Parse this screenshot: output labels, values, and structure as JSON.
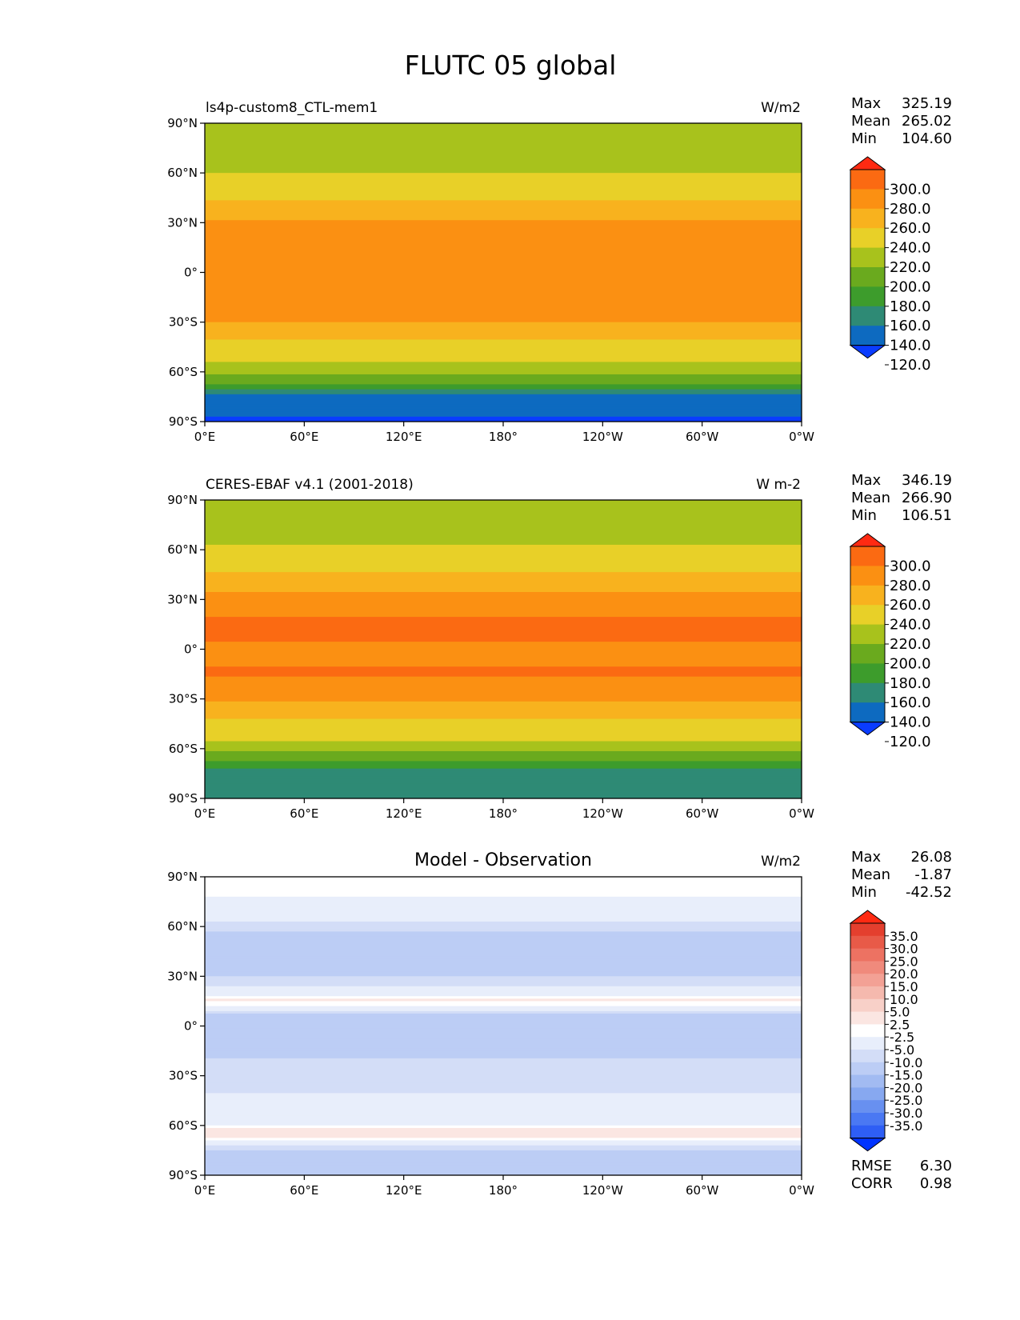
{
  "title": "FLUTC 05 global",
  "lat_ticks": [
    "90°N",
    "60°N",
    "30°N",
    "0°",
    "30°S",
    "60°S",
    "90°S"
  ],
  "lon_ticks": [
    "0°E",
    "60°E",
    "120°E",
    "180°",
    "120°W",
    "60°W",
    "0°W"
  ],
  "colors": {
    "abs": [
      "#0a3cff",
      "#0d6ac0",
      "#2e8a75",
      "#3d9c2c",
      "#6aaa1e",
      "#a8c21c",
      "#e8d028",
      "#f8b21e",
      "#fb9012",
      "#fb6a12",
      "#ff2a12"
    ],
    "diff": [
      "#0033ff",
      "#2e5ef5",
      "#4a78f3",
      "#6890f0",
      "#87a8f0",
      "#a2bbf2",
      "#bccdf5",
      "#d3ddf7",
      "#e8eefb",
      "#ffffff",
      "#fbe6e2",
      "#f8d0c8",
      "#f5b9ae",
      "#f3a195",
      "#f08a7c",
      "#ed7262",
      "#e85a48",
      "#e43f2e",
      "#ff2a12"
    ]
  },
  "chart_data": [
    {
      "type": "heatmap",
      "label_left": "ls4p-custom8_CTL-mem1",
      "label_right": "W/m2",
      "stats": {
        "max_label": "Max",
        "max": "325.19",
        "mean_label": "Mean",
        "mean": "265.02",
        "min_label": "Min",
        "min": "104.60"
      },
      "levels": [
        "300.0",
        "280.0",
        "260.0",
        "240.0",
        "220.0",
        "200.0",
        "180.0",
        "160.0",
        "140.0",
        "120.0"
      ],
      "zonal_profile": {
        "lat": [
          -90,
          -75,
          -65,
          -55,
          -45,
          -35,
          -25,
          -15,
          -5,
          5,
          15,
          25,
          35,
          45,
          55,
          65,
          75,
          90
        ],
        "value": [
          115,
          135,
          190,
          218,
          233,
          250,
          268,
          275,
          268,
          268,
          275,
          268,
          255,
          238,
          225,
          215,
          210,
          205
        ]
      }
    },
    {
      "type": "heatmap",
      "label_left": "CERES-EBAF v4.1 (2001-2018)",
      "label_right": "W m-2",
      "stats": {
        "max_label": "Max",
        "max": "346.19",
        "mean_label": "Mean",
        "mean": "266.90",
        "min_label": "Min",
        "min": "106.51"
      },
      "levels": [
        "300.0",
        "280.0",
        "260.0",
        "240.0",
        "220.0",
        "200.0",
        "180.0",
        "160.0",
        "140.0",
        "120.0"
      ],
      "zonal_profile": {
        "lat": [
          -90,
          -75,
          -65,
          -55,
          -45,
          -35,
          -25,
          -15,
          -5,
          5,
          15,
          25,
          35,
          45,
          55,
          65,
          75,
          90
        ],
        "value": [
          140,
          150,
          190,
          220,
          235,
          252,
          272,
          282,
          278,
          280,
          285,
          272,
          260,
          242,
          228,
          218,
          210,
          205
        ]
      }
    },
    {
      "type": "heatmap",
      "title": "Model - Observation",
      "label_right": "W/m2",
      "stats": {
        "max_label": "Max",
        "max": "26.08",
        "mean_label": "Mean",
        "mean": "-1.87",
        "min_label": "Min",
        "min": "-42.52"
      },
      "levels": [
        "35.0",
        "30.0",
        "25.0",
        "20.0",
        "15.0",
        "10.0",
        "5.0",
        "2.5",
        "-2.5",
        "-5.0",
        "-10.0",
        "-15.0",
        "-20.0",
        "-25.0",
        "-30.0",
        "-35.0"
      ],
      "extra": {
        "rmse_label": "RMSE",
        "rmse": "6.30",
        "corr_label": "CORR",
        "corr": "0.98"
      },
      "zonal_profile": {
        "lat": [
          -90,
          -75,
          -65,
          -55,
          -45,
          -35,
          -25,
          -15,
          -5,
          5,
          15,
          25,
          35,
          45,
          55,
          65,
          75,
          90
        ],
        "value": [
          -6,
          -6,
          8,
          -2,
          -2,
          -3,
          -4,
          -6,
          -10,
          -8,
          6,
          -4,
          -6,
          -8,
          -6,
          -2,
          2,
          4
        ]
      }
    }
  ]
}
